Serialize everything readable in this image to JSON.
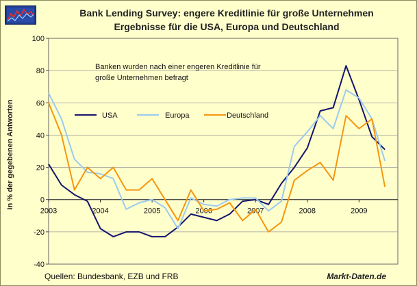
{
  "title_line1": "Bank Lending Survey: engere Kreditlinie für große Unternehmen",
  "title_line2": "Ergebnisse für die USA, Europa und Deutschland",
  "source": "Quellen: Bundesbank, EZB und FRB",
  "brand": "Markt-Daten.de",
  "colors": {
    "background": "#ffffcc",
    "grid": "#999999",
    "usa": "#14146e",
    "europa": "#9ccaf0",
    "deutschland": "#f5960f"
  },
  "chart_data": {
    "type": "line",
    "ylabel": "in % der gegebenen Antworten",
    "annotation": [
      "Banken wurden nach einer engeren Kreditlinie für",
      "große Unternehmen befragt"
    ],
    "xlim": [
      2003,
      2009.75
    ],
    "ylim": [
      -40,
      100
    ],
    "x_ticks": [
      "2003",
      "2004",
      "2005",
      "2006",
      "2007",
      "2008",
      "2009"
    ],
    "y_ticks": [
      "100",
      "80",
      "60",
      "40",
      "20",
      "0",
      "-20",
      "-40"
    ],
    "x": [
      2003.0,
      2003.25,
      2003.5,
      2003.75,
      2004.0,
      2004.25,
      2004.5,
      2004.75,
      2005.0,
      2005.25,
      2005.5,
      2005.75,
      2006.0,
      2006.25,
      2006.5,
      2006.75,
      2007.0,
      2007.25,
      2007.5,
      2007.75,
      2008.0,
      2008.25,
      2008.5,
      2008.75,
      2009.0,
      2009.25,
      2009.5
    ],
    "legend_position": "upper-left",
    "series": [
      {
        "name": "USA",
        "color": "#14146e",
        "values": [
          22,
          9,
          3,
          -1,
          -18,
          -23,
          -20,
          -20,
          -23,
          -23,
          -17,
          -9,
          -11,
          -13,
          -9,
          -1,
          0,
          -3,
          10,
          20,
          32,
          55,
          57,
          83,
          62,
          39,
          31
        ]
      },
      {
        "name": "Europa",
        "color": "#9ccaf0",
        "values": [
          66,
          50,
          25,
          17,
          16,
          13,
          -6,
          -2,
          0,
          -5,
          -18,
          1,
          -3,
          -4,
          0,
          1,
          1,
          -7,
          -1,
          33,
          42,
          52,
          44,
          68,
          63,
          50,
          24
        ]
      },
      {
        "name": "Deutschland",
        "color": "#f5960f",
        "values": [
          60,
          40,
          6,
          20,
          13,
          20,
          6,
          6,
          13,
          0,
          -13,
          6,
          -7,
          -6,
          -2,
          -13,
          -6,
          -20,
          -14,
          12,
          18,
          23,
          12,
          52,
          44,
          50,
          8
        ]
      }
    ]
  }
}
